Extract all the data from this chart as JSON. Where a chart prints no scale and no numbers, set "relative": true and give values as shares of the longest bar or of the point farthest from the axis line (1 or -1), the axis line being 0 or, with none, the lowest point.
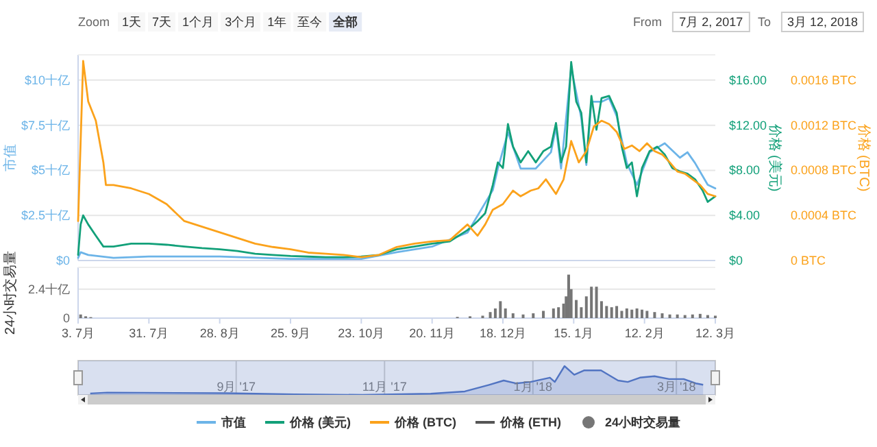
{
  "chart_data": [
    {
      "type": "line",
      "ylabel": "市值",
      "y2label": "价格 (美元)",
      "y3label": "价格 (BTC)",
      "xlim": [
        "2017-07-03",
        "2018-03-12"
      ],
      "ylim": [
        0,
        11.4
      ],
      "yticks": [
        {
          "value": 0,
          "label": "$0"
        },
        {
          "value": 2.5,
          "label": "$2.5十亿"
        },
        {
          "value": 5,
          "label": "$5十亿"
        },
        {
          "value": 7.5,
          "label": "$7.5十亿"
        },
        {
          "value": 10,
          "label": "$10十亿"
        }
      ],
      "y2lim": [
        0,
        18.24
      ],
      "y2ticks": [
        {
          "value": 0,
          "label": "$0"
        },
        {
          "value": 4,
          "label": "$4.00"
        },
        {
          "value": 8,
          "label": "$8.00"
        },
        {
          "value": 12,
          "label": "$12.00"
        },
        {
          "value": 16,
          "label": "$16.00"
        }
      ],
      "y3lim": [
        0,
        0.001824
      ],
      "y3ticks": [
        {
          "value": 0,
          "label": "0 BTC"
        },
        {
          "value": 0.0004,
          "label": "0.0004 BTC"
        },
        {
          "value": 0.0008,
          "label": "0.0008 BTC"
        },
        {
          "value": 0.0012,
          "label": "0.0012 BTC"
        },
        {
          "value": 0.0016,
          "label": "0.0016 BTC"
        }
      ],
      "tick_labels": "y",
      "grid": "y",
      "legend": "bottom",
      "annotations": [
        "Zoom",
        "1天",
        "7天",
        "1个月",
        "3个月",
        "1年",
        "至今",
        "全部",
        "From",
        "7月 2, 2017",
        "To",
        "3月 12, 2018"
      ],
      "series": [
        {
          "name": "市值",
          "color": "#6cb4e8",
          "axis": "y",
          "x": [
            "2017-07-03",
            "2017-07-04",
            "2017-07-07",
            "2017-07-17",
            "2017-07-31",
            "2017-08-28",
            "2017-09-25",
            "2017-10-23",
            "2017-11-06",
            "2017-11-20",
            "2017-12-04",
            "2017-12-14",
            "2017-12-16",
            "2017-12-20",
            "2017-12-25",
            "2017-12-31",
            "2018-01-06",
            "2018-01-08",
            "2018-01-10",
            "2018-01-14",
            "2018-01-18",
            "2018-01-20",
            "2018-01-22",
            "2018-01-26",
            "2018-01-29",
            "2018-02-01",
            "2018-02-05",
            "2018-02-09",
            "2018-02-14",
            "2018-02-20",
            "2018-02-26",
            "2018-03-01",
            "2018-03-04",
            "2018-03-09",
            "2018-03-12"
          ],
          "values": [
            0.15,
            0.46,
            0.31,
            0.15,
            0.22,
            0.22,
            0.09,
            0.09,
            0.46,
            0.77,
            1.55,
            3.9,
            5.1,
            7.1,
            5.1,
            5.1,
            6.0,
            7.4,
            5.1,
            10.7,
            7.9,
            5.3,
            8.8,
            8.8,
            9.0,
            8.0,
            5.4,
            4.2,
            6.0,
            6.5,
            5.7,
            6.0,
            5.4,
            4.2,
            4.0
          ]
        },
        {
          "name": "价格 (美元)",
          "color": "#12a079",
          "axis": "y2",
          "x": [
            "2017-07-03",
            "2017-07-04",
            "2017-07-05",
            "2017-07-07",
            "2017-07-10",
            "2017-07-13",
            "2017-07-17",
            "2017-07-24",
            "2017-07-31",
            "2017-08-07",
            "2017-08-14",
            "2017-08-21",
            "2017-08-28",
            "2017-09-04",
            "2017-09-11",
            "2017-09-18",
            "2017-09-25",
            "2017-10-02",
            "2017-10-09",
            "2017-10-16",
            "2017-10-23",
            "2017-10-30",
            "2017-11-06",
            "2017-11-13",
            "2017-11-20",
            "2017-11-27",
            "2017-12-04",
            "2017-12-08",
            "2017-12-11",
            "2017-12-14",
            "2017-12-16",
            "2017-12-18",
            "2017-12-20",
            "2017-12-22",
            "2017-12-25",
            "2017-12-28",
            "2017-12-31",
            "2018-01-03",
            "2018-01-06",
            "2018-01-08",
            "2018-01-10",
            "2018-01-12",
            "2018-01-14",
            "2018-01-16",
            "2018-01-18",
            "2018-01-20",
            "2018-01-22",
            "2018-01-24",
            "2018-01-26",
            "2018-01-29",
            "2018-02-01",
            "2018-02-03",
            "2018-02-05",
            "2018-02-07",
            "2018-02-09",
            "2018-02-11",
            "2018-02-14",
            "2018-02-17",
            "2018-02-20",
            "2018-02-23",
            "2018-02-26",
            "2018-03-01",
            "2018-03-04",
            "2018-03-07",
            "2018-03-09",
            "2018-03-12"
          ],
          "values": [
            0.5,
            3.2,
            4.0,
            3.2,
            2.2,
            1.24,
            1.24,
            1.5,
            1.5,
            1.4,
            1.24,
            1.1,
            1.0,
            0.85,
            0.6,
            0.5,
            0.4,
            0.35,
            0.3,
            0.3,
            0.35,
            0.5,
            1.0,
            1.24,
            1.5,
            1.7,
            2.7,
            3.5,
            4.2,
            6.7,
            8.7,
            8.2,
            12.1,
            10.1,
            8.7,
            9.7,
            8.7,
            9.7,
            10.1,
            12.2,
            8.7,
            10.1,
            17.6,
            14.1,
            13.1,
            8.7,
            14.6,
            11.6,
            14.4,
            14.6,
            13.1,
            10.1,
            8.2,
            8.7,
            5.7,
            8.2,
            9.7,
            10.1,
            9.4,
            8.2,
            7.9,
            7.7,
            7.2,
            6.2,
            5.2,
            5.7
          ]
        },
        {
          "name": "价格 (BTC)",
          "color": "#fba21b",
          "axis": "y3",
          "x": [
            "2017-07-03",
            "2017-07-04",
            "2017-07-05",
            "2017-07-07",
            "2017-07-10",
            "2017-07-13",
            "2017-07-14",
            "2017-07-17",
            "2017-07-24",
            "2017-07-31",
            "2017-08-07",
            "2017-08-14",
            "2017-08-21",
            "2017-08-28",
            "2017-09-04",
            "2017-09-11",
            "2017-09-18",
            "2017-09-25",
            "2017-10-02",
            "2017-10-09",
            "2017-10-16",
            "2017-10-23",
            "2017-10-30",
            "2017-11-06",
            "2017-11-13",
            "2017-11-20",
            "2017-11-27",
            "2017-12-04",
            "2017-12-08",
            "2017-12-11",
            "2017-12-14",
            "2017-12-18",
            "2017-12-22",
            "2017-12-25",
            "2017-12-29",
            "2018-01-01",
            "2018-01-04",
            "2018-01-08",
            "2018-01-11",
            "2018-01-14",
            "2018-01-17",
            "2018-01-20",
            "2018-01-23",
            "2018-01-26",
            "2018-01-29",
            "2018-02-01",
            "2018-02-04",
            "2018-02-07",
            "2018-02-10",
            "2018-02-13",
            "2018-02-16",
            "2018-02-19",
            "2018-02-22",
            "2018-02-25",
            "2018-02-28",
            "2018-03-03",
            "2018-03-06",
            "2018-03-09",
            "2018-03-12"
          ],
          "values": [
            0.00035,
            0.00106,
            0.00177,
            0.00141,
            0.00124,
            0.00087,
            0.00067,
            0.00067,
            0.00064,
            0.00059,
            0.0005,
            0.00035,
            0.0003,
            0.00025,
            0.0002,
            0.00015,
            0.00012,
            0.0001,
            7e-05,
            6e-05,
            5e-05,
            3e-05,
            5e-05,
            0.00012,
            0.00015,
            0.00017,
            0.00018,
            0.00032,
            0.00022,
            0.00032,
            0.00045,
            0.0005,
            0.00062,
            0.00057,
            0.00062,
            0.00064,
            0.00072,
            0.00059,
            0.00072,
            0.00106,
            0.00087,
            0.00097,
            0.00119,
            0.00124,
            0.00121,
            0.00114,
            0.00099,
            0.00102,
            0.00097,
            0.00104,
            0.00097,
            0.00094,
            0.00087,
            0.00079,
            0.00077,
            0.00072,
            0.00067,
            0.00059,
            0.00057
          ]
        },
        {
          "name": "价格 (ETH)",
          "color": "#555555"
        }
      ]
    },
    {
      "type": "bar",
      "ylabel": "24小时交易量",
      "xlim": [
        "2017-07-03",
        "2018-03-12"
      ],
      "ylim": [
        0,
        4.2
      ],
      "yticks": [
        0,
        {
          "value": 2.4,
          "label": "2.4十亿"
        }
      ],
      "grid": "y",
      "legend": "bottom",
      "xticks": [
        {
          "value": "2017-07-03",
          "label": "3. 7月"
        },
        {
          "value": "2017-07-31",
          "label": "31. 7月"
        },
        {
          "value": "2017-08-28",
          "label": "28. 8月"
        },
        {
          "value": "2017-09-25",
          "label": "25. 9月"
        },
        {
          "value": "2017-10-23",
          "label": "23. 10月"
        },
        {
          "value": "2017-11-20",
          "label": "20. 11月"
        },
        {
          "value": "2017-12-18",
          "label": "18. 12月"
        },
        {
          "value": "2018-01-15",
          "label": "15. 1月"
        },
        {
          "value": "2018-02-12",
          "label": "12. 2月"
        },
        {
          "value": "2018-03-12",
          "label": "12. 3月"
        }
      ],
      "series": [
        {
          "name": "24小时交易量",
          "color": "#767676",
          "x": [
            "2017-07-04",
            "2017-07-06",
            "2017-07-08",
            "2017-11-30",
            "2017-12-05",
            "2017-12-10",
            "2017-12-13",
            "2017-12-15",
            "2017-12-17",
            "2017-12-19",
            "2017-12-22",
            "2017-12-26",
            "2017-12-30",
            "2018-01-03",
            "2018-01-07",
            "2018-01-09",
            "2018-01-11",
            "2018-01-12",
            "2018-01-13",
            "2018-01-14",
            "2018-01-16",
            "2018-01-18",
            "2018-01-20",
            "2018-01-22",
            "2018-01-24",
            "2018-01-26",
            "2018-01-28",
            "2018-01-30",
            "2018-02-01",
            "2018-02-03",
            "2018-02-05",
            "2018-02-07",
            "2018-02-09",
            "2018-02-11",
            "2018-02-13",
            "2018-02-16",
            "2018-02-19",
            "2018-02-22",
            "2018-02-25",
            "2018-02-28",
            "2018-03-03",
            "2018-03-06",
            "2018-03-09",
            "2018-03-12"
          ],
          "values": [
            0.3,
            0.15,
            0.08,
            0.1,
            0.15,
            0.2,
            0.5,
            0.8,
            1.4,
            0.8,
            0.4,
            0.3,
            0.4,
            0.6,
            0.8,
            0.9,
            1.2,
            1.8,
            3.6,
            2.4,
            1.5,
            0.9,
            1.8,
            2.6,
            2.6,
            1.4,
            1.0,
            0.9,
            1.0,
            0.6,
            0.8,
            0.7,
            0.8,
            0.7,
            0.6,
            0.5,
            0.4,
            0.3,
            0.3,
            0.25,
            0.3,
            0.35,
            0.25,
            0.2
          ]
        }
      ]
    },
    {
      "type": "area",
      "relative": true,
      "xlim": [
        "2017-06-28",
        "2018-03-17"
      ],
      "grid": "x",
      "xticks": [
        {
          "value": "2017-09-01",
          "label": "9月 '17"
        },
        {
          "value": "2017-11-01",
          "label": "11月 '17"
        },
        {
          "value": "2018-01-01",
          "label": "1月 '18"
        },
        {
          "value": "2018-03-01",
          "label": "3月 '18"
        }
      ],
      "series": [
        {
          "color": "#4a6fc2",
          "x": [
            "2017-07-03",
            "2017-07-10",
            "2017-08-28",
            "2017-09-25",
            "2017-10-23",
            "2017-11-20",
            "2017-12-04",
            "2017-12-14",
            "2017-12-20",
            "2017-12-25",
            "2017-12-31",
            "2018-01-08",
            "2018-01-10",
            "2018-01-14",
            "2018-01-18",
            "2018-01-22",
            "2018-01-29",
            "2018-02-05",
            "2018-02-09",
            "2018-02-14",
            "2018-02-20",
            "2018-02-26",
            "2018-03-04",
            "2018-03-09",
            "2018-03-12"
          ],
          "values": [
            0.05,
            0.08,
            0.06,
            0.02,
            0,
            0.04,
            0.12,
            0.35,
            0.5,
            0.4,
            0.45,
            0.6,
            0.45,
            1,
            0.7,
            0.85,
            0.85,
            0.5,
            0.45,
            0.6,
            0.65,
            0.55,
            0.55,
            0.4,
            0.35
          ]
        }
      ]
    }
  ]
}
